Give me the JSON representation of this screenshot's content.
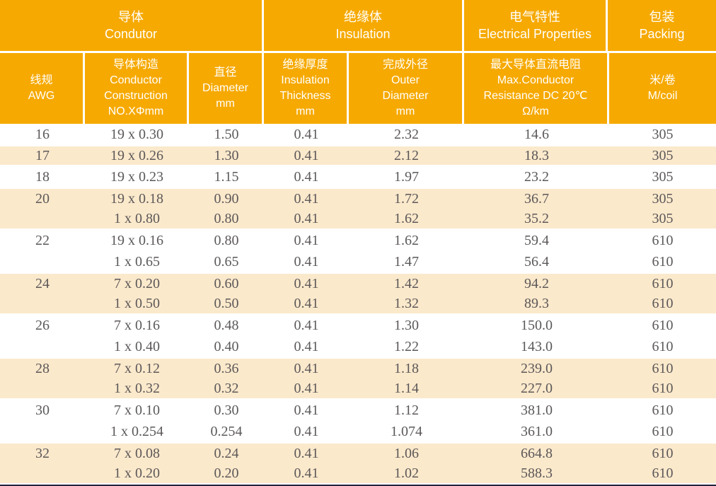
{
  "colors": {
    "header_bg": "#F6A900",
    "stripe_bg": "#FBE9CC",
    "header_text": "#FFFFFF",
    "data_text": "#5C5858",
    "bottom_bar": "#23233B"
  },
  "table": {
    "header_groups": [
      "导体\nCondutor",
      "绝缘体\nInsulation",
      "电气特性\nElectrical Properties",
      "包装\nPacking"
    ],
    "columns": [
      "线规\nAWG",
      "导体构造\nConductor\nConstruction\nNO.XΦmm",
      "直径\nDiameter\nmm",
      "绝缘厚度\nInsulation\nThickness\nmm",
      "完成外径\nOuter\nDiameter\nmm",
      "最大导体直流电阻\nMax.Conductor\nResistance DC 20℃\nΩ/km",
      "米/卷\nM/coil"
    ],
    "groups": [
      {
        "shaded": false,
        "rows": [
          [
            "16",
            "19 x 0.30",
            "1.50",
            "0.41",
            "2.32",
            "14.6",
            "305"
          ]
        ]
      },
      {
        "shaded": true,
        "rows": [
          [
            "17",
            "19 x 0.26",
            "1.30",
            "0.41",
            "2.12",
            "18.3",
            "305"
          ]
        ]
      },
      {
        "shaded": false,
        "rows": [
          [
            "18",
            "19 x 0.23",
            "1.15",
            "0.41",
            "1.97",
            "23.2",
            "305"
          ]
        ]
      },
      {
        "shaded": true,
        "rows": [
          [
            "20",
            "19 x 0.18",
            "0.90",
            "0.41",
            "1.72",
            "36.7",
            "305"
          ],
          [
            "",
            "1 x 0.80",
            "0.80",
            "0.41",
            "1.62",
            "35.2",
            "305"
          ]
        ]
      },
      {
        "shaded": false,
        "rows": [
          [
            "22",
            "19 x 0.16",
            "0.80",
            "0.41",
            "1.62",
            "59.4",
            "610"
          ],
          [
            "",
            "1 x 0.65",
            "0.65",
            "0.41",
            "1.47",
            "56.4",
            "610"
          ]
        ]
      },
      {
        "shaded": true,
        "rows": [
          [
            "24",
            "7 x 0.20",
            "0.60",
            "0.41",
            "1.42",
            "94.2",
            "610"
          ],
          [
            "",
            "1 x 0.50",
            "0.50",
            "0.41",
            "1.32",
            "89.3",
            "610"
          ]
        ]
      },
      {
        "shaded": false,
        "rows": [
          [
            "26",
            "7 x 0.16",
            "0.48",
            "0.41",
            "1.30",
            "150.0",
            "610"
          ],
          [
            "",
            "1 x 0.40",
            "0.40",
            "0.41",
            "1.22",
            "143.0",
            "610"
          ]
        ]
      },
      {
        "shaded": true,
        "rows": [
          [
            "28",
            "7 x 0.12",
            "0.36",
            "0.41",
            "1.18",
            "239.0",
            "610"
          ],
          [
            "",
            "1 x 0.32",
            "0.32",
            "0.41",
            "1.14",
            "227.0",
            "610"
          ]
        ]
      },
      {
        "shaded": false,
        "rows": [
          [
            "30",
            "7 x 0.10",
            "0.30",
            "0.41",
            "1.12",
            "381.0",
            "610"
          ],
          [
            "",
            "1 x 0.254",
            "0.254",
            "0.41",
            "1.074",
            "361.0",
            "610"
          ]
        ]
      },
      {
        "shaded": true,
        "rows": [
          [
            "32",
            "7 x 0.08",
            "0.24",
            "0.41",
            "1.06",
            "664.8",
            "610"
          ],
          [
            "",
            "1 x 0.20",
            "0.20",
            "0.41",
            "1.02",
            "588.3",
            "610"
          ]
        ]
      }
    ]
  }
}
